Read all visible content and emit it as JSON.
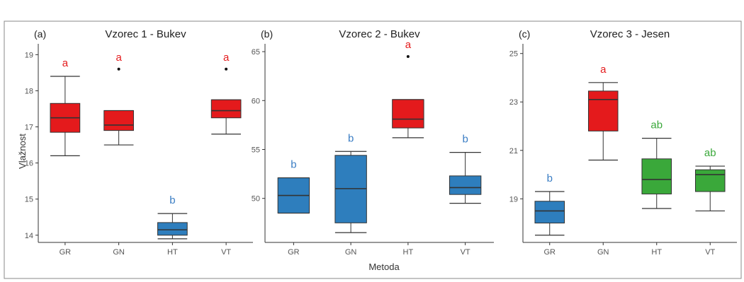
{
  "figure": {
    "xlabel": "Metoda",
    "ylabel": "Vlažnost"
  },
  "colors": {
    "red": "#e41a1c",
    "blue": "#2e7ebd",
    "green": "#3aa83a",
    "letter_red": "#e41a1c",
    "letter_blue": "#3a7dc4",
    "letter_green": "#3aa83a"
  },
  "chart_data": [
    {
      "type": "boxplot",
      "panel_label": "(a)",
      "title": "Vzorec 1 - Bukev",
      "ylabel": "Vlažnost",
      "xlabel": "",
      "ylim": [
        13.8,
        19.3
      ],
      "yticks": [
        14,
        15,
        16,
        17,
        18,
        19
      ],
      "categories": [
        "GR",
        "GN",
        "HT",
        "VT"
      ],
      "boxes": [
        {
          "category": "GR",
          "min": 16.2,
          "q1": 16.85,
          "median": 17.25,
          "q3": 17.65,
          "max": 18.4,
          "outliers": [],
          "letter": "a",
          "color": "red"
        },
        {
          "category": "GN",
          "min": 16.5,
          "q1": 16.9,
          "median": 17.05,
          "q3": 17.45,
          "max": 17.45,
          "outliers": [
            18.6
          ],
          "letter": "a",
          "color": "red"
        },
        {
          "category": "HT",
          "min": 13.9,
          "q1": 14.0,
          "median": 14.15,
          "q3": 14.35,
          "max": 14.6,
          "outliers": [],
          "letter": "b",
          "color": "blue"
        },
        {
          "category": "VT",
          "min": 16.8,
          "q1": 17.25,
          "median": 17.45,
          "q3": 17.75,
          "max": 17.75,
          "outliers": [
            18.6
          ],
          "letter": "a",
          "color": "red"
        }
      ]
    },
    {
      "type": "boxplot",
      "panel_label": "(b)",
      "title": "Vzorec 2 - Bukev",
      "ylabel": "",
      "xlabel": "Metoda",
      "ylim": [
        45.5,
        65.8
      ],
      "yticks": [
        50,
        55,
        60,
        65
      ],
      "categories": [
        "GR",
        "GN",
        "HT",
        "VT"
      ],
      "boxes": [
        {
          "category": "GR",
          "min": 48.5,
          "q1": 48.5,
          "median": 50.3,
          "q3": 52.1,
          "max": 52.1,
          "outliers": [],
          "letter": "b",
          "color": "blue"
        },
        {
          "category": "GN",
          "min": 46.5,
          "q1": 47.5,
          "median": 51.0,
          "q3": 54.4,
          "max": 54.8,
          "outliers": [],
          "letter": "b",
          "color": "blue"
        },
        {
          "category": "HT",
          "min": 56.2,
          "q1": 57.2,
          "median": 58.1,
          "q3": 60.1,
          "max": 60.1,
          "outliers": [
            64.5
          ],
          "letter": "a",
          "color": "red"
        },
        {
          "category": "VT",
          "min": 49.5,
          "q1": 50.4,
          "median": 51.1,
          "q3": 52.3,
          "max": 54.7,
          "outliers": [],
          "letter": "b",
          "color": "blue"
        }
      ]
    },
    {
      "type": "boxplot",
      "panel_label": "(c)",
      "title": "Vzorec 3 - Jesen",
      "ylabel": "",
      "xlabel": "",
      "ylim": [
        17.2,
        25.4
      ],
      "yticks": [
        19,
        21,
        23,
        25
      ],
      "categories": [
        "GR",
        "GN",
        "HT",
        "VT"
      ],
      "boxes": [
        {
          "category": "GR",
          "min": 17.5,
          "q1": 18.0,
          "median": 18.5,
          "q3": 18.9,
          "max": 19.3,
          "outliers": [],
          "letter": "b",
          "color": "blue"
        },
        {
          "category": "GN",
          "min": 20.6,
          "q1": 21.8,
          "median": 23.1,
          "q3": 23.45,
          "max": 23.8,
          "outliers": [],
          "letter": "a",
          "color": "red"
        },
        {
          "category": "HT",
          "min": 18.6,
          "q1": 19.2,
          "median": 19.8,
          "q3": 20.65,
          "max": 21.5,
          "outliers": [],
          "letter": "ab",
          "color": "green"
        },
        {
          "category": "VT",
          "min": 18.5,
          "q1": 19.3,
          "median": 20.0,
          "q3": 20.2,
          "max": 20.35,
          "outliers": [],
          "letter": "ab",
          "color": "green"
        }
      ]
    }
  ]
}
